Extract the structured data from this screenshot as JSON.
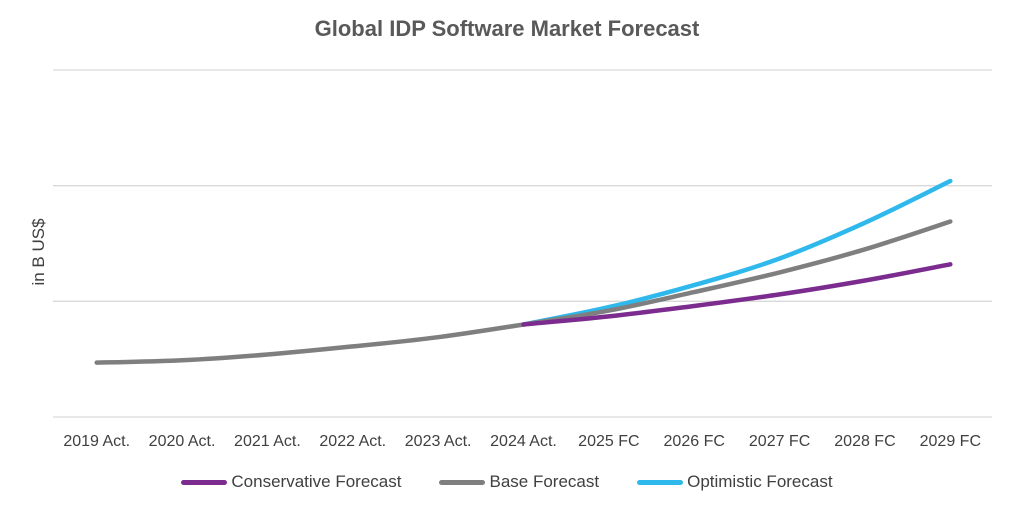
{
  "chart_data": {
    "type": "line",
    "title": "Global IDP Software Market Forecast",
    "xlabel": "",
    "ylabel": "in B US$",
    "categories": [
      "2019 Act.",
      "2020 Act.",
      "2021 Act.",
      "2022 Act.",
      "2023 Act.",
      "2024 Act.",
      "2025 FC",
      "2026 FC",
      "2027 FC",
      "2028 FC",
      "2029 FC"
    ],
    "ylim": [
      0,
      3
    ],
    "y_gridlines": [
      0,
      1,
      2,
      3
    ],
    "y_tick_labels_shown": false,
    "series": [
      {
        "name": "Conservative Forecast",
        "color": "#7B2C8E",
        "values": [
          null,
          null,
          null,
          null,
          null,
          0.8,
          0.87,
          0.96,
          1.06,
          1.18,
          1.32
        ]
      },
      {
        "name": "Base Forecast",
        "color": "#7F7F7F",
        "values": [
          0.47,
          0.49,
          0.54,
          0.61,
          0.69,
          0.8,
          0.92,
          1.08,
          1.25,
          1.45,
          1.69
        ]
      },
      {
        "name": "Optimistic Forecast",
        "color": "#2EB8EC",
        "values": [
          null,
          null,
          null,
          null,
          null,
          0.8,
          0.95,
          1.14,
          1.37,
          1.68,
          2.04
        ]
      }
    ],
    "legend_position": "bottom",
    "grid": true
  }
}
